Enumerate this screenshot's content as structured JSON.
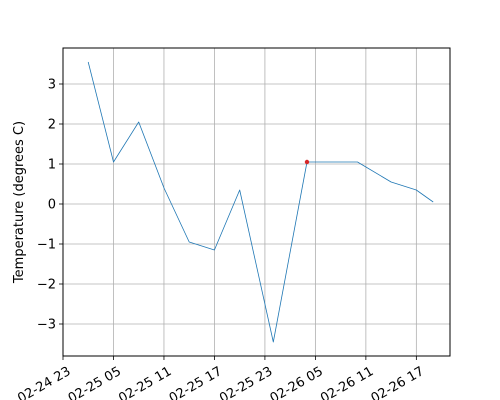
{
  "chart_data": {
    "type": "line",
    "title": "",
    "xlabel": "",
    "ylabel": "Temperature (degrees C)",
    "x": [
      "2024-02-25 02:00",
      "2024-02-25 05:00",
      "2024-02-25 08:00",
      "2024-02-25 11:00",
      "2024-02-25 14:00",
      "2024-02-25 17:00",
      "2024-02-25 20:00",
      "2024-02-26 00:00",
      "2024-02-26 04:00",
      "2024-02-26 10:00",
      "2024-02-26 14:00",
      "2024-02-26 17:00",
      "2024-02-26 19:00"
    ],
    "series": [
      {
        "values": [
          3.55,
          1.05,
          2.05,
          0.4,
          -0.95,
          -1.15,
          0.35,
          -3.45,
          1.05,
          1.05,
          0.55,
          0.35,
          0.05
        ],
        "color": "#1f77b4"
      }
    ],
    "highlight_point": {
      "x": "2024-02-26 04:00",
      "y": 1.05,
      "color": "#d62728"
    },
    "xlim": [
      "2024-02-24 23:00",
      "2024-02-26 21:00"
    ],
    "ylim": [
      -3.8,
      3.9
    ],
    "x_ticks": [
      {
        "at": "2024-02-24 23:00",
        "label": "02-24 23"
      },
      {
        "at": "2024-02-25 05:00",
        "label": "02-25 05"
      },
      {
        "at": "2024-02-25 11:00",
        "label": "02-25 11"
      },
      {
        "at": "2024-02-25 17:00",
        "label": "02-25 17"
      },
      {
        "at": "2024-02-25 23:00",
        "label": "02-25 23"
      },
      {
        "at": "2024-02-26 05:00",
        "label": "02-26 05"
      },
      {
        "at": "2024-02-26 11:00",
        "label": "02-26 11"
      },
      {
        "at": "2024-02-26 17:00",
        "label": "02-26 17"
      }
    ],
    "y_ticks": [
      {
        "value": -3,
        "label": "−3"
      },
      {
        "value": -2,
        "label": "−2"
      },
      {
        "value": -1,
        "label": "−1"
      },
      {
        "value": 0,
        "label": "0"
      },
      {
        "value": 1,
        "label": "1"
      },
      {
        "value": 2,
        "label": "2"
      },
      {
        "value": 3,
        "label": "3"
      }
    ],
    "grid": true,
    "legend": false
  }
}
